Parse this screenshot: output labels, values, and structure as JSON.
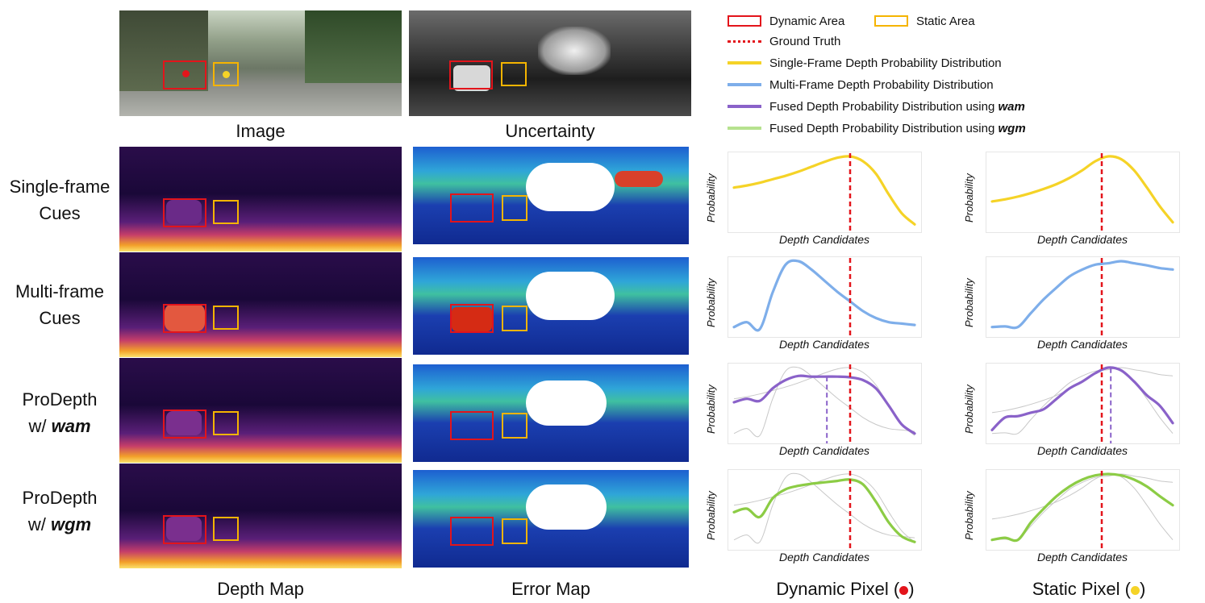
{
  "captions": {
    "image": "Image",
    "uncertainty": "Uncertainty",
    "depth_map": "Depth Map",
    "error_map": "Error Map",
    "dynamic_pixel": "Dynamic Pixel (",
    "dynamic_pixel_end": ")",
    "static_pixel": "Static Pixel (",
    "static_pixel_end": ")"
  },
  "rows": [
    {
      "line1": "Single-frame",
      "line2": "Cues",
      "bold": ""
    },
    {
      "line1": "Multi-frame",
      "line2": "Cues",
      "bold": ""
    },
    {
      "line1": "ProDepth",
      "line2": "w/ ",
      "bold": "wam"
    },
    {
      "line1": "ProDepth",
      "line2": "w/ ",
      "bold": "wgm"
    }
  ],
  "legend": {
    "dynamic_area": "Dynamic Area",
    "static_area": "Static Area",
    "ground_truth": "Ground Truth",
    "single": "Single-Frame Depth Probability Distribution",
    "multi": "Multi-Frame Depth Probability Distribution",
    "fused_wam_prefix": "Fused Depth Probability Distribution using ",
    "fused_wam_bold": "wam",
    "fused_wgm_prefix": "Fused Depth Probability Distribution using ",
    "fused_wgm_bold": "wgm"
  },
  "axis": {
    "x_label": "Depth Candidates",
    "y_label": "Probability"
  },
  "colors": {
    "dynamic_box": "#e3141b",
    "static_box": "#f5b400",
    "ground_truth": "#e3141b",
    "single": "#f5d327",
    "multi": "#7eaeea",
    "wam": "#8a62c9",
    "wgm": "#8ccc45",
    "ghost": "#c8c8c8"
  },
  "chart_data": [
    {
      "type": "line",
      "panel": "dynamic-single",
      "series": [
        {
          "values": [
            0.55,
            0.58,
            0.62,
            0.67,
            0.72,
            0.78,
            0.85,
            0.92,
            0.98,
            1.0,
            0.93,
            0.75,
            0.45,
            0.18,
            0.02
          ]
        }
      ],
      "ground_truth_index": 9
    },
    {
      "type": "line",
      "panel": "static-single",
      "series": [
        {
          "values": [
            0.35,
            0.38,
            0.42,
            0.47,
            0.53,
            0.6,
            0.69,
            0.8,
            0.93,
            1.0,
            0.96,
            0.8,
            0.55,
            0.28,
            0.05
          ]
        }
      ],
      "ground_truth_index": 8.5
    },
    {
      "type": "line",
      "panel": "dynamic-multi",
      "series": [
        {
          "values": [
            0.05,
            0.12,
            0.02,
            0.55,
            0.95,
            1.0,
            0.88,
            0.72,
            0.56,
            0.42,
            0.28,
            0.18,
            0.12,
            0.1,
            0.08
          ]
        }
      ],
      "ground_truth_index": 9
    },
    {
      "type": "line",
      "panel": "static-multi",
      "series": [
        {
          "values": [
            0.05,
            0.06,
            0.05,
            0.25,
            0.45,
            0.62,
            0.78,
            0.88,
            0.95,
            0.97,
            1.0,
            0.97,
            0.94,
            0.9,
            0.88
          ]
        }
      ],
      "ground_truth_index": 8.5
    },
    {
      "type": "line",
      "panel": "dynamic-wam",
      "series": [
        {
          "values": [
            0.5,
            0.55,
            0.52,
            0.7,
            0.82,
            0.88,
            0.87,
            0.87,
            0.87,
            0.86,
            0.82,
            0.7,
            0.45,
            0.18,
            0.05
          ]
        }
      ],
      "ground_truth_index": 9,
      "estimate_index": 7.2
    },
    {
      "type": "line",
      "panel": "static-wam",
      "series": [
        {
          "values": [
            0.1,
            0.28,
            0.3,
            0.35,
            0.4,
            0.55,
            0.7,
            0.8,
            0.92,
            1.0,
            0.96,
            0.8,
            0.6,
            0.45,
            0.2
          ]
        }
      ],
      "ground_truth_index": 8.5,
      "estimate_index": 9.2
    },
    {
      "type": "line",
      "panel": "dynamic-wgm",
      "series": [
        {
          "values": [
            0.45,
            0.5,
            0.38,
            0.65,
            0.78,
            0.83,
            0.86,
            0.88,
            0.9,
            0.92,
            0.85,
            0.6,
            0.3,
            0.1,
            0.02
          ]
        }
      ],
      "ground_truth_index": 9
    },
    {
      "type": "line",
      "panel": "static-wgm",
      "series": [
        {
          "values": [
            0.05,
            0.08,
            0.05,
            0.3,
            0.5,
            0.68,
            0.82,
            0.92,
            0.98,
            1.0,
            0.98,
            0.92,
            0.82,
            0.68,
            0.55
          ]
        }
      ],
      "ground_truth_index": 8.5
    }
  ]
}
